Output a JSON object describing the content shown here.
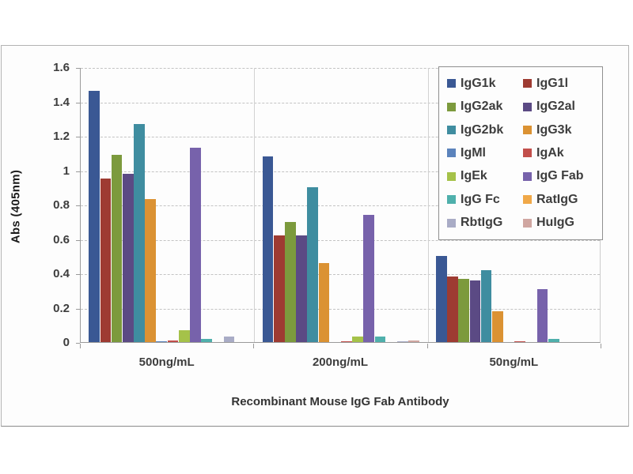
{
  "figure": {
    "y_axis_title": "Abs (405nm)",
    "x_axis_title": "Recombinant Mouse IgG Fab Antibody"
  },
  "chart_data": {
    "type": "bar",
    "title": "",
    "xlabel": "Recombinant Mouse IgG Fab Antibody",
    "ylabel": "Abs (405nm)",
    "ylim": [
      0,
      1.6
    ],
    "y_ticks": [
      {
        "value": 0,
        "label": "0"
      },
      {
        "value": 0.2,
        "label": "0.2"
      },
      {
        "value": 0.4,
        "label": "0.4"
      },
      {
        "value": 0.6,
        "label": "0.6"
      },
      {
        "value": 0.8,
        "label": "0.8"
      },
      {
        "value": 1,
        "label": "1"
      },
      {
        "value": 1.2,
        "label": "1.2"
      },
      {
        "value": 1.4,
        "label": "1.4"
      },
      {
        "value": 1.6,
        "label": "1.6"
      }
    ],
    "grid": "horizontal-dashed",
    "legend_position": "top-right-overlay-2-columns",
    "categories": [
      "500ng/mL",
      "200ng/mL",
      "50ng/mL"
    ],
    "series": [
      {
        "name": "IgG1k",
        "color": "#3a5894",
        "values": [
          1.46,
          1.08,
          0.5
        ]
      },
      {
        "name": "IgG1l",
        "color": "#9e3b32",
        "values": [
          0.95,
          0.62,
          0.38
        ]
      },
      {
        "name": "IgG2ak",
        "color": "#7c9a3d",
        "values": [
          1.09,
          0.7,
          0.37
        ]
      },
      {
        "name": "IgG2al",
        "color": "#5b4a84",
        "values": [
          0.98,
          0.62,
          0.36
        ]
      },
      {
        "name": "IgG2bk",
        "color": "#3f8da0",
        "values": [
          1.27,
          0.9,
          0.42
        ]
      },
      {
        "name": "IgG3k",
        "color": "#db9233",
        "values": [
          0.83,
          0.46,
          0.18
        ]
      },
      {
        "name": "IgMl",
        "color": "#5b83bc",
        "values": [
          0.005,
          0,
          0
        ]
      },
      {
        "name": "IgAk",
        "color": "#c24f4b",
        "values": [
          0.01,
          0.005,
          0.005
        ]
      },
      {
        "name": "IgEk",
        "color": "#a5c249",
        "values": [
          0.07,
          0.03,
          0
        ]
      },
      {
        "name": "IgG Fab",
        "color": "#7762ab",
        "values": [
          1.13,
          0.74,
          0.31
        ]
      },
      {
        "name": "IgG Fc",
        "color": "#4fb0ac",
        "values": [
          0.02,
          0.03,
          0.02
        ]
      },
      {
        "name": "RatIgG",
        "color": "#f0a848",
        "values": [
          0,
          0,
          0
        ]
      },
      {
        "name": "RbtIgG",
        "color": "#a9acc6",
        "values": [
          0.03,
          0.005,
          0
        ]
      },
      {
        "name": "HuIgG",
        "color": "#d0a6a1",
        "values": [
          0,
          0.01,
          0
        ]
      }
    ]
  }
}
